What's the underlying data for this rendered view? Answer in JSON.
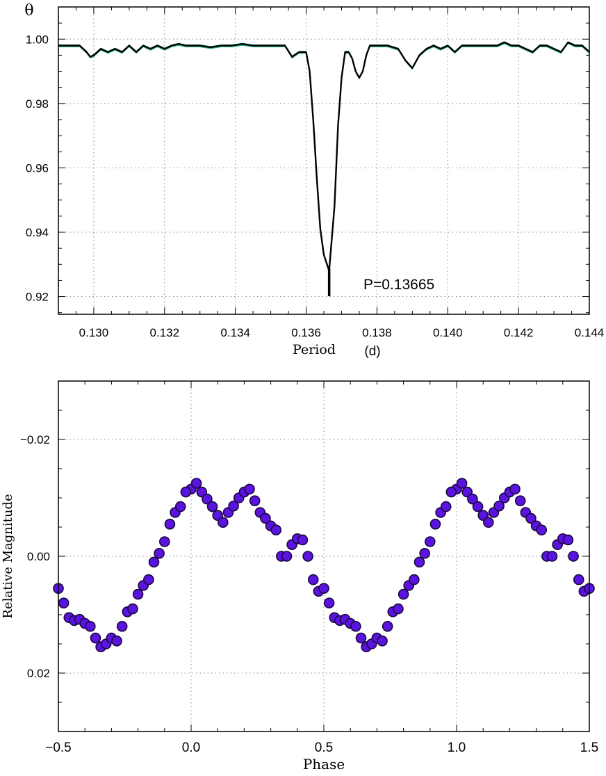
{
  "chart_data": [
    {
      "type": "line",
      "ylabel": "θ",
      "xlabel": "Period",
      "xlabel_unit": "(d)",
      "xlim": [
        0.129,
        0.144
      ],
      "ylim": [
        0.9145,
        1.01
      ],
      "xticks": [
        "0.130",
        "0.132",
        "0.134",
        "0.136",
        "0.138",
        "0.140",
        "0.142",
        "0.144"
      ],
      "yticks": [
        "0.92",
        "0.94",
        "0.96",
        "0.98",
        "1.00"
      ],
      "grid": true,
      "line_color": "#000000",
      "band_color": "#1aaa88",
      "series": [
        {
          "x": [
            0.129,
            0.1293,
            0.1296,
            0.1298,
            0.1299,
            0.13,
            0.1302,
            0.1304,
            0.1306,
            0.1308,
            0.131,
            0.1312,
            0.1314,
            0.1316,
            0.1318,
            0.132,
            0.1322,
            0.1324,
            0.1326,
            0.1328,
            0.133,
            0.1333,
            0.1336,
            0.1339,
            0.1342,
            0.1345,
            0.1348,
            0.1351,
            0.1354,
            0.1356,
            0.1358,
            0.136,
            0.1361,
            0.1362,
            0.1363,
            0.1364,
            0.1365,
            0.13665,
            0.1368,
            0.1369,
            0.137,
            0.1371,
            0.1372,
            0.1373,
            0.1374,
            0.1375,
            0.1376,
            0.1377,
            0.1378,
            0.1379,
            0.138,
            0.1383,
            0.1386,
            0.1388,
            0.139,
            0.1392,
            0.1394,
            0.1396,
            0.1398,
            0.14,
            0.1402,
            0.1404,
            0.1406,
            0.1408,
            0.141,
            0.1412,
            0.1414,
            0.1416,
            0.1418,
            0.142,
            0.1422,
            0.1424,
            0.1426,
            0.1428,
            0.143,
            0.1432,
            0.1434,
            0.1436,
            0.1438,
            0.144
          ],
          "values": [
            0.998,
            0.998,
            0.998,
            0.996,
            0.9945,
            0.995,
            0.997,
            0.996,
            0.997,
            0.996,
            0.998,
            0.996,
            0.998,
            0.997,
            0.998,
            0.997,
            0.998,
            0.9985,
            0.998,
            0.998,
            0.998,
            0.9975,
            0.998,
            0.998,
            0.9985,
            0.998,
            0.998,
            0.998,
            0.998,
            0.9945,
            0.996,
            0.996,
            0.99,
            0.975,
            0.957,
            0.941,
            0.933,
            0.928,
            0.948,
            0.973,
            0.988,
            0.996,
            0.996,
            0.994,
            0.99,
            0.988,
            0.99,
            0.995,
            0.998,
            0.998,
            0.998,
            0.998,
            0.997,
            0.9935,
            0.991,
            0.995,
            0.997,
            0.998,
            0.997,
            0.998,
            0.996,
            0.998,
            0.998,
            0.998,
            0.998,
            0.998,
            0.998,
            0.999,
            0.998,
            0.998,
            0.997,
            0.996,
            0.998,
            0.998,
            0.997,
            0.996,
            0.999,
            0.998,
            0.998,
            0.996
          ]
        }
      ],
      "annotation": {
        "text": "P=0.13665",
        "x": 0.13665
      }
    },
    {
      "type": "scatter",
      "xlabel": "Phase",
      "ylabel": "Relative Magnitude",
      "xlim": [
        -0.5,
        1.5
      ],
      "ylim": [
        0.03,
        -0.03
      ],
      "xticks": [
        "−0.5",
        "0.0",
        "0.5",
        "1.0",
        "1.5"
      ],
      "yticks": [
        "−0.02",
        "0.00",
        "0.02"
      ],
      "grid": true,
      "marker_color": "#5b14e0",
      "marker_edge": "#1a0640",
      "series": [
        {
          "x": [
            0.0,
            0.02,
            0.04,
            0.06,
            0.08,
            0.1,
            0.12,
            0.14,
            0.16,
            0.18,
            0.2,
            0.22,
            0.24,
            0.26,
            0.28,
            0.3,
            0.32,
            0.34,
            0.36,
            0.38,
            0.4,
            0.42,
            0.44,
            0.46,
            0.48,
            0.5,
            0.52,
            0.54,
            0.56,
            0.58,
            0.6,
            0.62,
            0.64,
            0.66,
            0.68,
            0.7,
            0.72,
            0.74,
            0.76,
            0.78,
            0.8,
            0.82,
            0.84,
            0.86,
            0.88,
            0.9,
            0.92,
            0.94,
            0.96,
            0.98
          ],
          "values": [
            -0.0115,
            -0.0125,
            -0.011,
            -0.0098,
            -0.0085,
            -0.007,
            -0.0058,
            -0.0075,
            -0.0086,
            -0.01,
            -0.011,
            -0.0115,
            -0.0095,
            -0.0075,
            -0.0065,
            -0.0052,
            -0.0045,
            0.0,
            0.0,
            -0.002,
            -0.003,
            -0.0028,
            0.0,
            0.004,
            0.006,
            0.0055,
            0.008,
            0.0105,
            0.011,
            0.0108,
            0.0115,
            0.012,
            0.014,
            0.0155,
            0.015,
            0.014,
            0.0145,
            0.012,
            0.0095,
            0.009,
            0.0065,
            0.005,
            0.004,
            0.001,
            -0.0005,
            -0.0025,
            -0.0055,
            -0.0075,
            -0.0085,
            -0.011
          ]
        }
      ]
    }
  ]
}
